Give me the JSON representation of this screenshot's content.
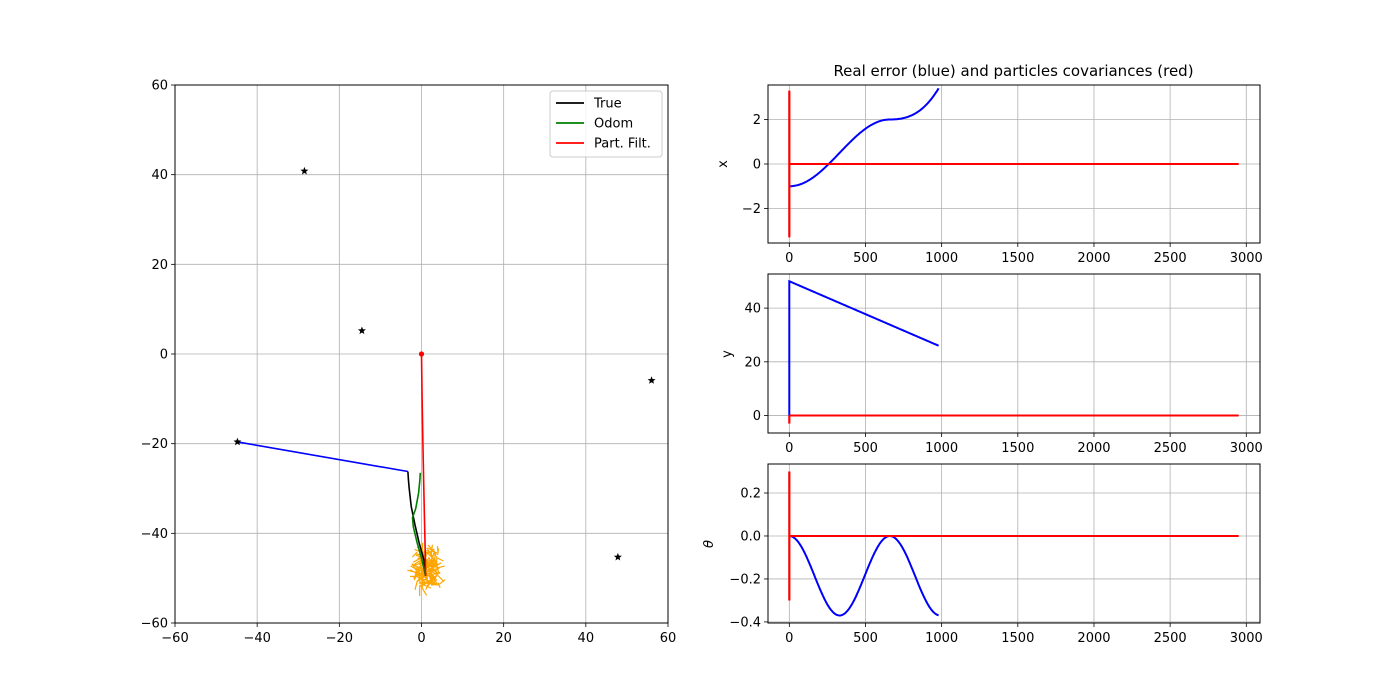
{
  "chart_data": [
    {
      "type": "line",
      "title": "",
      "xlabel": "",
      "ylabel": "",
      "xlim": [
        -60,
        60
      ],
      "ylim": [
        -60,
        60
      ],
      "xticks": [
        -60,
        -40,
        -20,
        0,
        20,
        40,
        60
      ],
      "yticks": [
        -60,
        -40,
        -20,
        0,
        20,
        40,
        60
      ],
      "grid": true,
      "legend_position": "top-right",
      "legend": [
        {
          "label": "True",
          "color": "#000000"
        },
        {
          "label": "Odom",
          "color": "#008000"
        },
        {
          "label": "Part. Filt.",
          "color": "#ff0000"
        }
      ],
      "landmarks": [
        {
          "x": -28.5,
          "y": 40.8
        },
        {
          "x": -14.5,
          "y": 5.2
        },
        {
          "x": 56.0,
          "y": -5.9
        },
        {
          "x": -44.8,
          "y": -19.6
        },
        {
          "x": 47.8,
          "y": -45.3
        }
      ],
      "series": [
        {
          "name": "True",
          "color": "#000000",
          "x": [
            1.0,
            0.6,
            -0.6,
            -1.6,
            -2.5,
            -3.0,
            -3.2,
            -3.3
          ],
          "y": [
            -49.5,
            -46.0,
            -42.0,
            -38.0,
            -34.0,
            -30.0,
            -28.0,
            -26.2
          ]
        },
        {
          "name": "Odom",
          "color": "#008000",
          "x": [
            1.0,
            0.0,
            -1.1,
            -2.0,
            -2.2,
            -1.4,
            -0.7,
            -0.4,
            -0.3
          ],
          "y": [
            -49.5,
            -45.5,
            -42.0,
            -38.5,
            -36.5,
            -34.5,
            -31.0,
            -28.0,
            -26.5
          ]
        },
        {
          "name": "Part. Filt.",
          "color": "#ff0000",
          "x": [
            0.0,
            0.15,
            0.35,
            0.55,
            0.75,
            0.9,
            1.0
          ],
          "y": [
            0.0,
            -10.0,
            -20.0,
            -30.0,
            -38.0,
            -44.0,
            -49.5
          ]
        },
        {
          "name": "",
          "color": "#0000ff",
          "x": [
            -44.8,
            -3.3
          ],
          "y": [
            -19.6,
            -26.2
          ]
        }
      ],
      "particle_cloud": {
        "color": "#ffa500",
        "center": [
          1.5,
          -47.8
        ],
        "spread": [
          2.6,
          3.8
        ]
      },
      "start_marker": {
        "x": 0,
        "y": 0,
        "color": "#ff0000"
      }
    },
    {
      "type": "line",
      "title": "Real error (blue) and particles covariances (red)",
      "xlabel": "",
      "ylabel": "x",
      "xlim": [
        -140,
        3090
      ],
      "ylim": [
        -3.55,
        3.55
      ],
      "xticks": [
        0,
        500,
        1000,
        1500,
        2000,
        2500,
        3000
      ],
      "yticks": [
        -2,
        0,
        2
      ],
      "grid": true,
      "series": [
        {
          "name": "",
          "color": "#0000ff",
          "curve": "x_error",
          "x_range": [
            0,
            980
          ]
        },
        {
          "name": "",
          "color": "#ff0000",
          "curve": "flat",
          "x_range": [
            0,
            2950
          ],
          "y": 0,
          "spike": [
            -3.3,
            3.3
          ]
        }
      ]
    },
    {
      "type": "line",
      "title": "",
      "xlabel": "",
      "ylabel": "y",
      "xlim": [
        -140,
        3090
      ],
      "ylim": [
        -6.5,
        52.7
      ],
      "xticks": [
        0,
        500,
        1000,
        1500,
        2000,
        2500,
        3000
      ],
      "yticks": [
        0,
        20,
        40
      ],
      "grid": true,
      "series": [
        {
          "name": "",
          "color": "#0000ff",
          "curve": "y_error",
          "x_range": [
            0,
            980
          ]
        },
        {
          "name": "",
          "color": "#ff0000",
          "curve": "flat",
          "x_range": [
            0,
            2950
          ],
          "y": 0,
          "spike": [
            -3.0,
            0
          ]
        }
      ]
    },
    {
      "type": "line",
      "title": "",
      "xlabel": "",
      "ylabel": "θ",
      "xlim": [
        -140,
        3090
      ],
      "ylim": [
        -0.405,
        0.335
      ],
      "xticks": [
        0,
        500,
        1000,
        1500,
        2000,
        2500,
        3000
      ],
      "yticks": [
        0.2,
        0.0,
        -0.2,
        -0.4
      ],
      "ytick_labels": [
        "0.2",
        "0.0",
        "−0.2",
        "−0.4"
      ],
      "grid": true,
      "series": [
        {
          "name": "",
          "color": "#0000ff",
          "curve": "theta_error",
          "x_range": [
            0,
            980
          ]
        },
        {
          "name": "",
          "color": "#ff0000",
          "curve": "flat",
          "x_range": [
            0,
            2950
          ],
          "y": 0,
          "spike": [
            -0.3,
            0.3
          ]
        }
      ]
    }
  ]
}
